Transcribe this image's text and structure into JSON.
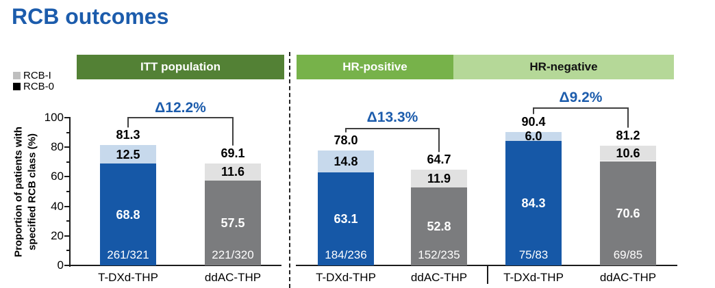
{
  "title": "RCB outcomes",
  "legend": {
    "items": [
      {
        "key": "rcb-i",
        "label": "RCB-I",
        "swatch": "#BFBFBF"
      },
      {
        "key": "rcb-0",
        "label": "RCB-0",
        "swatch": "#000000"
      }
    ]
  },
  "y_axis": {
    "title": "Proportion of patients with\nspecified RCB class (%)",
    "ticks": [
      0,
      20,
      40,
      60,
      80,
      100
    ],
    "minor_ticks": [
      10,
      30,
      50,
      70,
      90
    ],
    "range": [
      0,
      100
    ]
  },
  "colors": {
    "accent_blue": "#1C5CAC",
    "bar_blue": "#1658A7",
    "bar_blue_light": "#C7D9EC",
    "bar_gray": "#7B7C7E",
    "bar_gray_light": "#E1E1E1",
    "header_itt": "#538135",
    "header_hr_positive": "#77B24A",
    "header_hr_negative": "#B5D898",
    "axis": "#1A1A1A",
    "bracket": "#3F3F3F",
    "bar_value_text": "#FFFFFF",
    "label_text": "#000000"
  },
  "chart_data": {
    "type": "bar",
    "stacked": true,
    "grid": false,
    "ylim": [
      0,
      100
    ],
    "ylabel": "Proportion of patients with specified RCB class (%)",
    "legend_position": "upper-left",
    "series_legend": [
      "RCB-I",
      "RCB-0"
    ],
    "panels": [
      {
        "key": "itt",
        "header": {
          "label": "ITT population",
          "bg": "#538135",
          "text_color": "#FFFFFF"
        },
        "delta": "Δ12.2%",
        "categories": [
          "T-DXd-THP",
          "ddAC-THP"
        ],
        "bars": [
          {
            "category": "T-DXd-THP",
            "scheme": "blue",
            "total": 81.3,
            "rcb0": 68.8,
            "rcb1": 12.5,
            "fraction": "261/321"
          },
          {
            "category": "ddAC-THP",
            "scheme": "gray",
            "total": 69.1,
            "rcb0": 57.5,
            "rcb1": 11.6,
            "fraction": "221/320"
          }
        ]
      },
      {
        "key": "hr-positive",
        "header": {
          "label": "HR-positive",
          "bg": "#77B24A",
          "text_color": "#FFFFFF"
        },
        "delta": "Δ13.3%",
        "categories": [
          "T-DXd-THP",
          "ddAC-THP"
        ],
        "bars": [
          {
            "category": "T-DXd-THP",
            "scheme": "blue",
            "total": 78.0,
            "rcb0": 63.1,
            "rcb1": 14.8,
            "fraction": "184/236"
          },
          {
            "category": "ddAC-THP",
            "scheme": "gray",
            "total": 64.7,
            "rcb0": 52.8,
            "rcb1": 11.9,
            "fraction": "152/235"
          }
        ]
      },
      {
        "key": "hr-negative",
        "header": {
          "label": "HR-negative",
          "bg": "#B5D898",
          "text_color": "#111111"
        },
        "delta": "Δ9.2%",
        "categories": [
          "T-DXd-THP",
          "ddAC-THP"
        ],
        "bars": [
          {
            "category": "T-DXd-THP",
            "scheme": "blue",
            "total": 90.4,
            "rcb0": 84.3,
            "rcb1": 6.0,
            "fraction": "75/83"
          },
          {
            "category": "ddAC-THP",
            "scheme": "gray",
            "total": 81.2,
            "rcb0": 70.6,
            "rcb1": 10.6,
            "fraction": "69/85"
          }
        ]
      }
    ]
  }
}
